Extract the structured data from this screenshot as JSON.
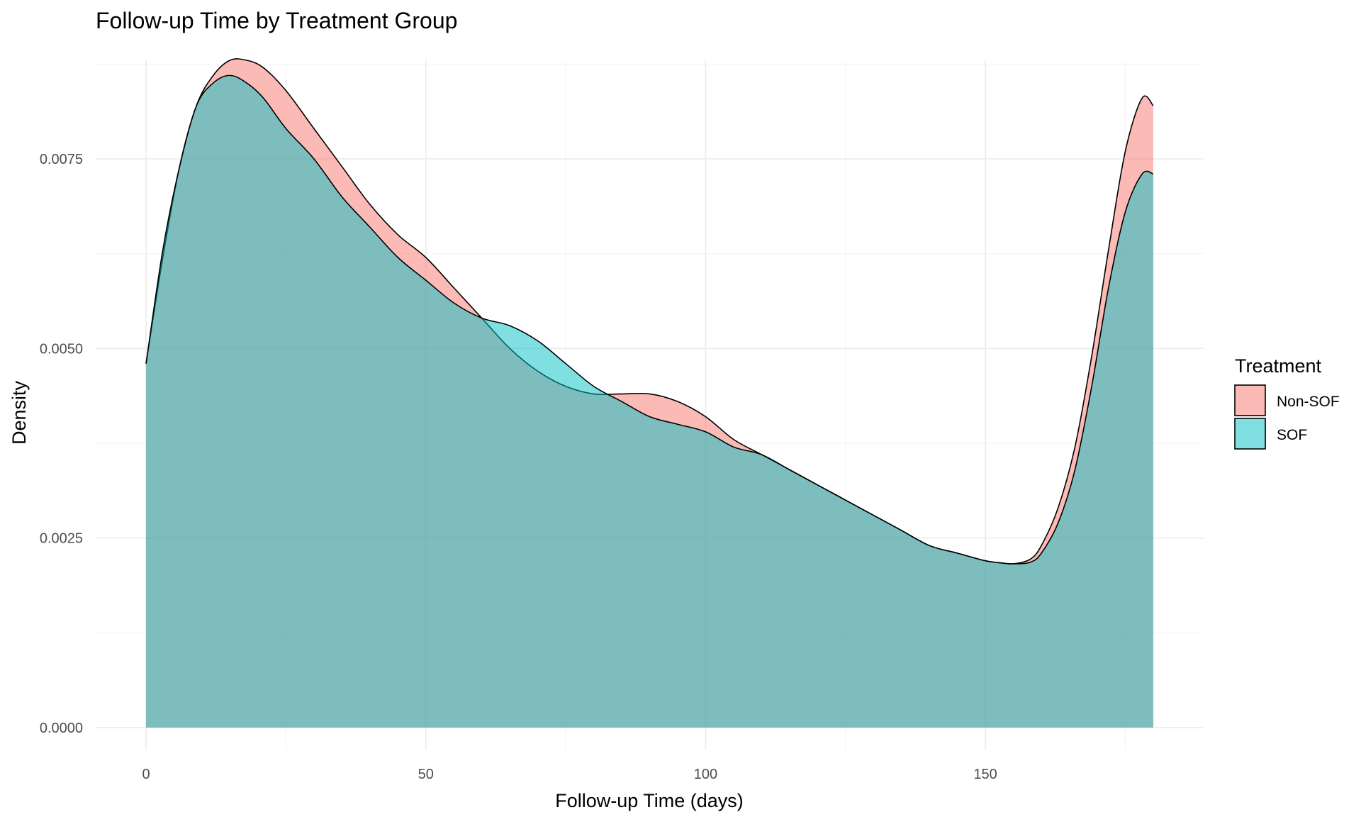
{
  "chart_data": {
    "type": "area",
    "title": "Follow-up Time by Treatment Group",
    "xlabel": "Follow-up Time (days)",
    "ylabel": "Density",
    "xlim": [
      -9,
      189
    ],
    "ylim": [
      -0.0003,
      0.0088
    ],
    "x_ticks": [
      0,
      50,
      100,
      150
    ],
    "x_tick_labels": [
      "0",
      "50",
      "100",
      "150"
    ],
    "x_minor_ticks": [
      25,
      75,
      125,
      175
    ],
    "y_ticks": [
      0,
      0.0025,
      0.005,
      0.0075
    ],
    "y_tick_labels": [
      "0.0000",
      "0.0025",
      "0.0050",
      "0.0075"
    ],
    "y_minor_ticks": [
      0.00125,
      0.00375,
      0.00625,
      0.00875
    ],
    "grid": true,
    "legend": {
      "title": "Treatment",
      "position": "right"
    },
    "series": [
      {
        "name": "Non-SOF",
        "color": "#F8766D",
        "x": [
          0,
          3,
          6,
          9,
          12,
          15,
          18,
          21,
          25,
          30,
          35,
          40,
          45,
          50,
          55,
          60,
          65,
          70,
          75,
          80,
          85,
          90,
          95,
          100,
          105,
          110,
          115,
          120,
          125,
          130,
          135,
          140,
          145,
          150,
          153,
          155,
          158,
          160,
          163,
          166,
          169,
          172,
          175,
          178,
          180
        ],
        "y": [
          0.0048,
          0.0062,
          0.0074,
          0.0082,
          0.0086,
          0.0088,
          0.0088,
          0.0087,
          0.0084,
          0.0079,
          0.0074,
          0.0069,
          0.0065,
          0.0062,
          0.0058,
          0.0054,
          0.005,
          0.0047,
          0.0045,
          0.0044,
          0.0044,
          0.0044,
          0.0043,
          0.0041,
          0.0038,
          0.0036,
          0.0034,
          0.0032,
          0.003,
          0.0028,
          0.0026,
          0.0024,
          0.0023,
          0.0022,
          0.00217,
          0.00216,
          0.00222,
          0.0024,
          0.0029,
          0.0037,
          0.0049,
          0.0063,
          0.0076,
          0.0083,
          0.0082
        ]
      },
      {
        "name": "SOF",
        "color": "#00BFC4",
        "x": [
          0,
          3,
          6,
          9,
          12,
          15,
          18,
          21,
          25,
          30,
          35,
          40,
          45,
          50,
          55,
          60,
          65,
          70,
          75,
          80,
          85,
          90,
          95,
          100,
          105,
          110,
          115,
          120,
          125,
          130,
          135,
          140,
          145,
          150,
          153,
          155,
          158,
          160,
          163,
          166,
          169,
          172,
          175,
          178,
          180
        ],
        "y": [
          0.0048,
          0.0063,
          0.0074,
          0.0082,
          0.0085,
          0.0086,
          0.0085,
          0.0083,
          0.0079,
          0.0075,
          0.007,
          0.0066,
          0.0062,
          0.0059,
          0.0056,
          0.0054,
          0.0053,
          0.0051,
          0.0048,
          0.0045,
          0.0043,
          0.0041,
          0.004,
          0.0039,
          0.0037,
          0.0036,
          0.0034,
          0.0032,
          0.003,
          0.0028,
          0.0026,
          0.0024,
          0.0023,
          0.0022,
          0.00217,
          0.00216,
          0.00218,
          0.0023,
          0.0027,
          0.0034,
          0.0045,
          0.0058,
          0.0068,
          0.0073,
          0.0073
        ]
      }
    ]
  }
}
